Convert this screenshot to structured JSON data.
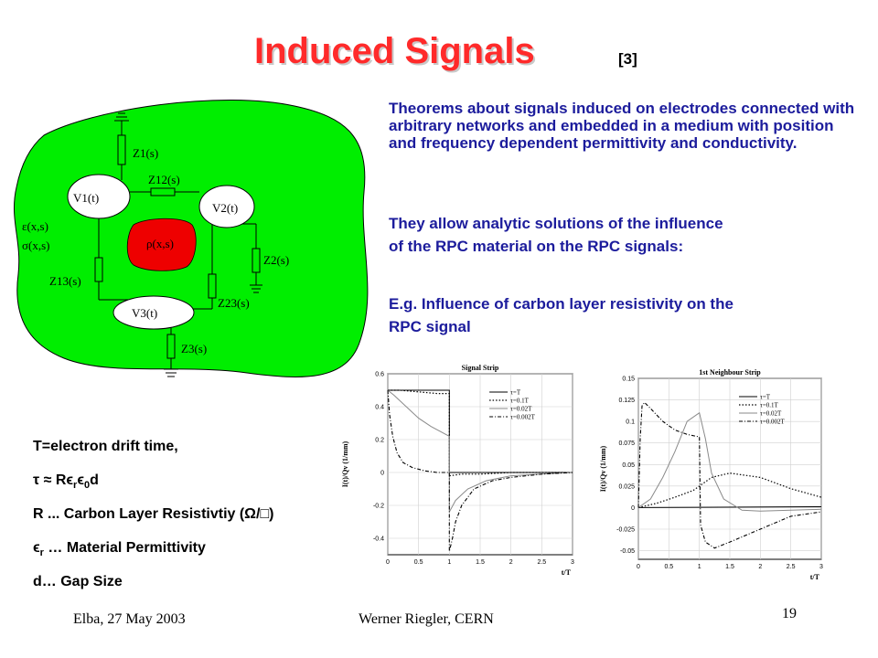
{
  "title": "Induced Signals",
  "title_ref": "[3]",
  "paragraph1": "Theorems about signals induced on electrodes connected with arbitrary networks and embedded in a medium with position and frequency dependent permittivity and conductivity.",
  "paragraph2_line1": "They allow analytic solutions of the influence",
  "paragraph2_line2": "of the RPC material on the RPC signals:",
  "paragraph3_line1": "E.g. Influence of carbon layer resistivity on the",
  "paragraph3_line2": "RPC signal",
  "defs": {
    "line1": "T=electron drift time,",
    "line2": "τ  ≈  Rϵ",
    "line2_sub1": "r",
    "line2_mid": "ϵ",
    "line2_sub2": "0",
    "line2_end": "d",
    "line3": "R ... Carbon Layer Resistivtiy (Ω/□)",
    "line4_a": "ϵ",
    "line4_sub": "r",
    "line4_b": " … Material Permittivity",
    "line5": "d… Gap Size"
  },
  "diagram": {
    "eps": "ε(x,s)",
    "sigma": "σ(x,s)",
    "rho": "ρ(x,s)",
    "z1": "Z1(s)",
    "z12": "Z12(s)",
    "v1": "V1(t)",
    "v2": "V2(t)",
    "v3": "V3(t)",
    "z2": "Z2(s)",
    "z13": "Z13(s)",
    "z23": "Z23(s)",
    "z3": "Z3(s)"
  },
  "chart_data": [
    {
      "type": "line",
      "title": "Signal Strip",
      "xlabel": "t/T",
      "ylabel": "I(t)/Qv (1/mm)",
      "xlim": [
        0,
        3
      ],
      "ylim": [
        -0.5,
        0.6
      ],
      "xticks": [
        "0",
        "0.5",
        "1",
        "1.5",
        "2",
        "2.5",
        "3"
      ],
      "yticks": [
        "-0.4",
        "-0.2",
        "0",
        "0.2",
        "0.4",
        "0.6"
      ],
      "grid": true,
      "legend_position": "top-right",
      "series": [
        {
          "name": "τ=T",
          "style": "solid-black",
          "x": [
            0,
            1,
            1,
            3
          ],
          "y": [
            0.5,
            0.5,
            0.0,
            0.0
          ]
        },
        {
          "name": "τ=0.1T",
          "style": "dotted",
          "x": [
            0,
            0.2,
            0.5,
            0.8,
            1,
            1,
            1.2,
            1.5,
            2,
            2.5,
            3
          ],
          "y": [
            0.5,
            0.5,
            0.49,
            0.48,
            0.48,
            -0.02,
            -0.01,
            -0.01,
            0.0,
            0.0,
            0.0
          ]
        },
        {
          "name": "τ=0.02T",
          "style": "solid-gray",
          "x": [
            0,
            0.1,
            0.3,
            0.5,
            0.7,
            0.9,
            1,
            1,
            1.1,
            1.3,
            1.6,
            2,
            2.5,
            3
          ],
          "y": [
            0.5,
            0.47,
            0.4,
            0.33,
            0.28,
            0.24,
            0.22,
            -0.24,
            -0.17,
            -0.1,
            -0.05,
            -0.02,
            -0.01,
            0.0
          ]
        },
        {
          "name": "τ=0.002T",
          "style": "dash-dot",
          "x": [
            0,
            0.03,
            0.08,
            0.15,
            0.25,
            0.4,
            0.6,
            0.8,
            1,
            1,
            1.05,
            1.1,
            1.2,
            1.4,
            1.7,
            2,
            2.5,
            3
          ],
          "y": [
            0.5,
            0.35,
            0.22,
            0.12,
            0.06,
            0.03,
            0.01,
            0.0,
            0.0,
            -0.48,
            -0.4,
            -0.3,
            -0.2,
            -0.1,
            -0.05,
            -0.03,
            -0.01,
            0.0
          ]
        }
      ]
    },
    {
      "type": "line",
      "title": "1st Neighbour Strip",
      "xlabel": "t/T",
      "ylabel": "I(t)/Qv (1/mm)",
      "xlim": [
        0,
        3
      ],
      "ylim": [
        -0.06,
        0.15
      ],
      "xticks": [
        "0",
        "0.5",
        "1",
        "1.5",
        "2",
        "2.5",
        "3"
      ],
      "yticks": [
        "-0.05",
        "-0.025",
        "0",
        "0.025",
        "0.05",
        "0.075",
        "0.1",
        "0.125",
        "0.15"
      ],
      "grid": true,
      "legend_position": "top-right",
      "series": [
        {
          "name": "τ=T",
          "style": "solid-black",
          "x": [
            0,
            3
          ],
          "y": [
            0.0,
            0.001
          ]
        },
        {
          "name": "τ=0.1T",
          "style": "dotted",
          "x": [
            0,
            0.3,
            0.6,
            0.9,
            1,
            1.2,
            1.5,
            2,
            2.5,
            3
          ],
          "y": [
            0.0,
            0.005,
            0.012,
            0.02,
            0.025,
            0.035,
            0.04,
            0.035,
            0.022,
            0.012
          ]
        },
        {
          "name": "τ=0.02T",
          "style": "solid-gray",
          "x": [
            0,
            0.2,
            0.4,
            0.6,
            0.8,
            1,
            1.1,
            1.2,
            1.4,
            1.7,
            2,
            2.5,
            3
          ],
          "y": [
            0.0,
            0.01,
            0.035,
            0.065,
            0.1,
            0.11,
            0.08,
            0.04,
            0.01,
            -0.003,
            -0.004,
            -0.003,
            -0.002
          ]
        },
        {
          "name": "τ=0.002T",
          "style": "dash-dot",
          "x": [
            0,
            0.03,
            0.06,
            0.1,
            0.2,
            0.4,
            0.6,
            0.8,
            1,
            1.02,
            1.1,
            1.25,
            1.5,
            2,
            2.5,
            3
          ],
          "y": [
            0.0,
            0.08,
            0.118,
            0.122,
            0.115,
            0.1,
            0.09,
            0.085,
            0.082,
            -0.02,
            -0.04,
            -0.047,
            -0.04,
            -0.025,
            -0.01,
            -0.005
          ]
        }
      ]
    }
  ],
  "footer": {
    "left": "Elba, 27 May 2003",
    "center": "Werner Riegler, CERN",
    "page": "19"
  }
}
